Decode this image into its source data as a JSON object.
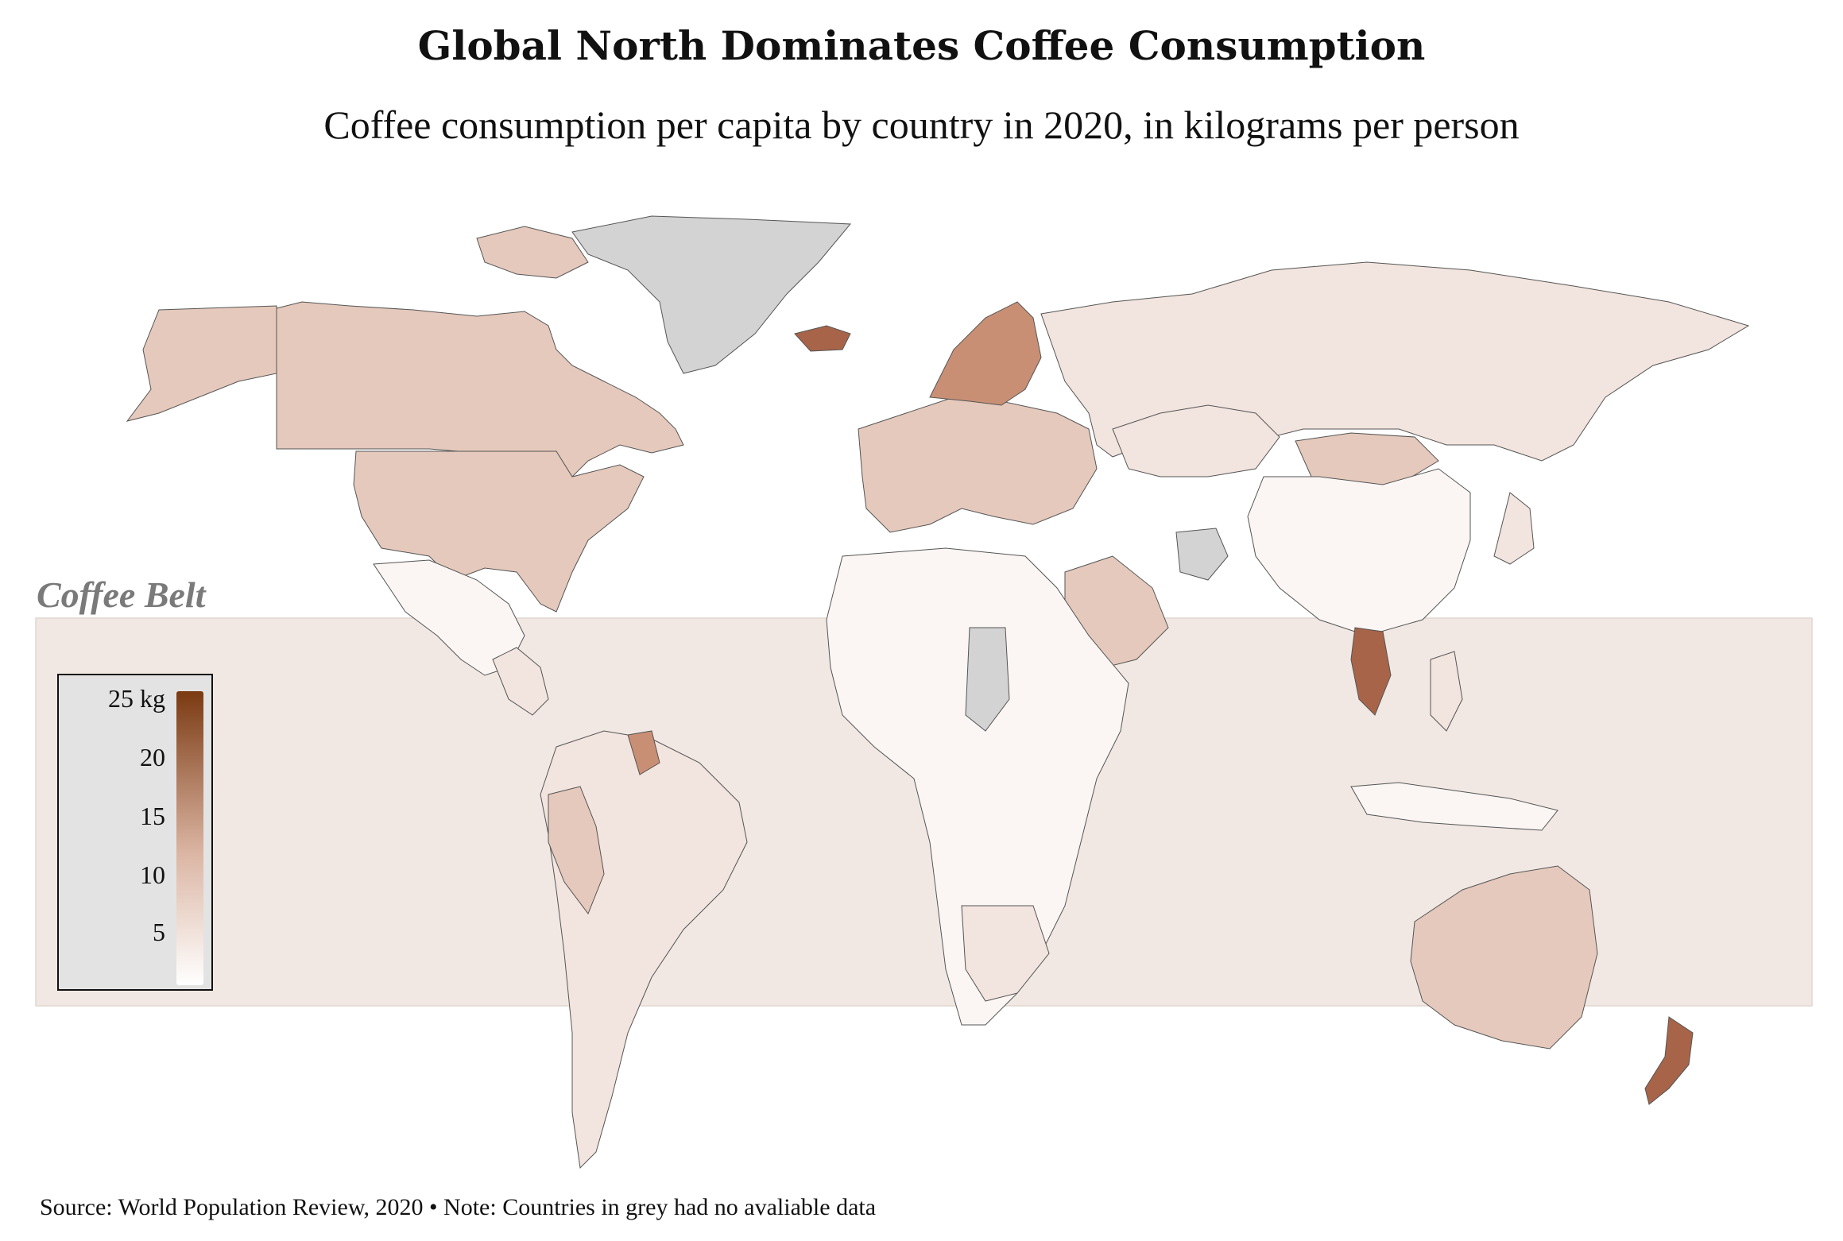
{
  "title": "Global North Dominates Coffee Consumption",
  "subtitle": "Coffee consumption per capita by country in 2020, in kilograms per person",
  "belt_label": "Coffee Belt",
  "legend": {
    "labels": [
      "25 kg",
      "20",
      "15",
      "10",
      "5"
    ],
    "min": 0,
    "max": 25,
    "colors": {
      "low": "#ffffff",
      "mid": "#dbb5a3",
      "high": "#7a3a12",
      "no_data": "#d3d3d3"
    }
  },
  "footer": "Source: World Population Review, 2020 • Note: Countries in grey had no avaliable data",
  "colors": {
    "belt_band": "#f1e8e4",
    "legend_bg": "#e3e3e3",
    "very_low": "#fbf6f4",
    "low": "#f2e4de",
    "mid": "#e5c9bc",
    "high": "#c98f75",
    "very_high": "#a86448",
    "no_data": "#d3d3d3"
  },
  "regions": [
    {
      "name": "Canada",
      "color": "mid"
    },
    {
      "name": "United States",
      "color": "mid"
    },
    {
      "name": "Greenland",
      "color": "no_data"
    },
    {
      "name": "Mexico",
      "color": "very_low"
    },
    {
      "name": "Central America",
      "color": "low"
    },
    {
      "name": "South America",
      "color": "low"
    },
    {
      "name": "Peru",
      "color": "mid"
    },
    {
      "name": "Guyana",
      "color": "high"
    },
    {
      "name": "Iceland",
      "color": "very_high"
    },
    {
      "name": "Europe",
      "color": "mid"
    },
    {
      "name": "Scandinavia",
      "color": "high"
    },
    {
      "name": "Russia",
      "color": "low"
    },
    {
      "name": "Kazakhstan",
      "color": "low"
    },
    {
      "name": "Mongolia",
      "color": "mid"
    },
    {
      "name": "China",
      "color": "very_low"
    },
    {
      "name": "Japan",
      "color": "low"
    },
    {
      "name": "Afghanistan",
      "color": "no_data"
    },
    {
      "name": "Saudi Arabia",
      "color": "mid"
    },
    {
      "name": "Libya",
      "color": "mid"
    },
    {
      "name": "Africa",
      "color": "very_low"
    },
    {
      "name": "Chad",
      "color": "no_data"
    },
    {
      "name": "South Africa",
      "color": "low"
    },
    {
      "name": "Laos",
      "color": "very_high"
    },
    {
      "name": "Philippines",
      "color": "low"
    },
    {
      "name": "Indonesia",
      "color": "very_low"
    },
    {
      "name": "Australia",
      "color": "mid"
    },
    {
      "name": "New Zealand",
      "color": "very_high"
    }
  ]
}
